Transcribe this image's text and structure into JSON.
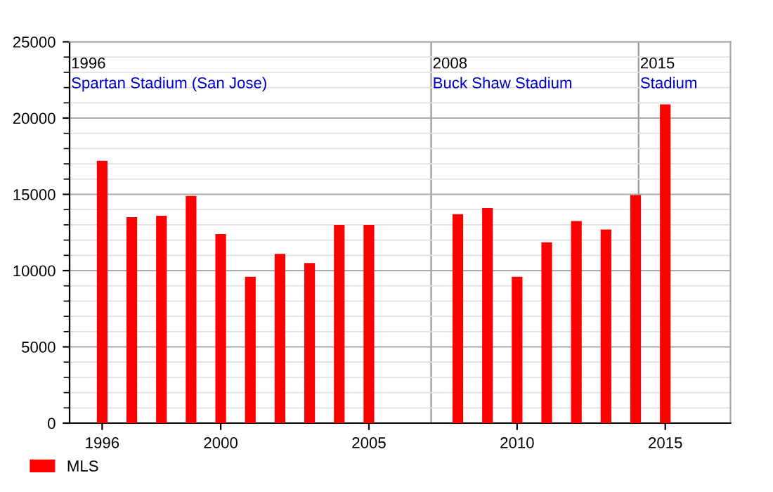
{
  "chart_data": {
    "type": "bar",
    "x": [
      1996,
      1997,
      1998,
      1999,
      2000,
      2001,
      2002,
      2003,
      2004,
      2005,
      2008,
      2009,
      2010,
      2011,
      2012,
      2013,
      2014,
      2015
    ],
    "series": [
      {
        "name": "MLS",
        "color": "#ff0000",
        "values": [
          17200,
          13500,
          13600,
          14900,
          12400,
          9600,
          11100,
          10500,
          13000,
          13000,
          13700,
          14100,
          9600,
          11850,
          13250,
          12700,
          14950,
          20900
        ]
      }
    ],
    "xlim": [
      1994.9,
      2017.2
    ],
    "xticks": [
      1996,
      2000,
      2005,
      2010,
      2015
    ],
    "ylim": [
      0,
      25000
    ],
    "yticks": [
      0,
      5000,
      10000,
      15000,
      20000,
      25000
    ],
    "ref_lines": [
      {
        "axis": "x",
        "value": 1994.9,
        "label": "1996\nSpartan Stadium (San Jose)",
        "color": "#999999"
      },
      {
        "axis": "x",
        "value": 2007.1,
        "label": "2008\nBuck Shaw Stadium",
        "color": "#999999"
      },
      {
        "axis": "x",
        "value": 2014.1,
        "label": "2015\nStadium",
        "color": "#999999"
      }
    ],
    "grid": "y",
    "legend": "bottom left"
  }
}
